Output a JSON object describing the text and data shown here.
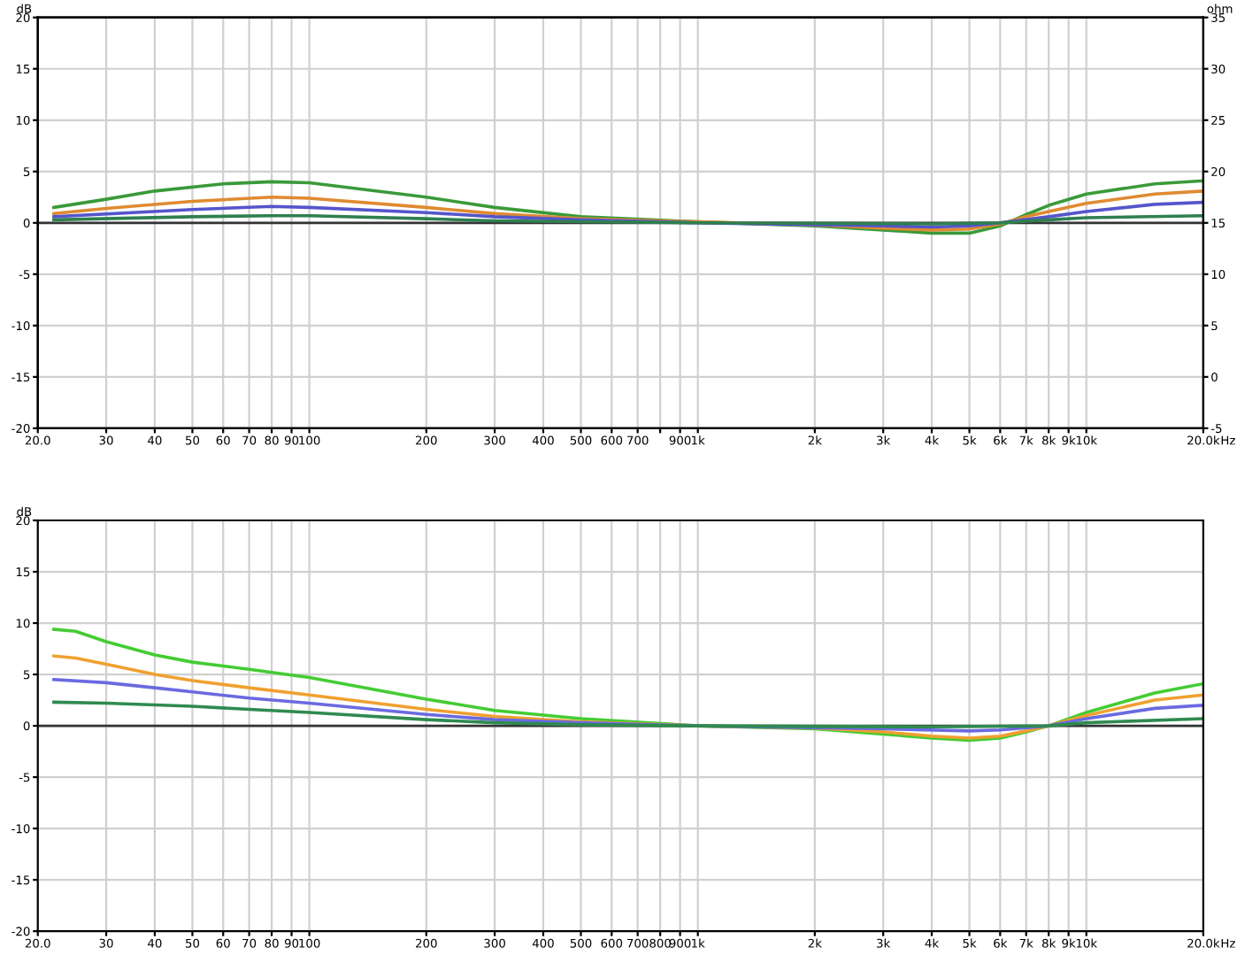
{
  "chart_data": [
    {
      "type": "line",
      "ylabel": "dB",
      "y2label": "ohm",
      "xlabel": "Hz",
      "xlim": [
        20,
        20000
      ],
      "ylim": [
        -20,
        20
      ],
      "y2lim": [
        -5,
        35
      ],
      "log": "x",
      "grid": true,
      "legend": false,
      "marker": "none",
      "line_style": "solid",
      "xticks": [
        {
          "value": 20,
          "label": "20.0"
        },
        30,
        40,
        50,
        60,
        70,
        80,
        90,
        100,
        200,
        300,
        400,
        500,
        600,
        700,
        {
          "value": 800,
          "label": null
        },
        900,
        {
          "value": 1000,
          "label": "1k"
        },
        {
          "value": 2000,
          "label": "2k"
        },
        {
          "value": 3000,
          "label": "3k"
        },
        {
          "value": 4000,
          "label": "4k"
        },
        {
          "value": 5000,
          "label": "5k"
        },
        {
          "value": 6000,
          "label": "6k"
        },
        {
          "value": 7000,
          "label": "7k"
        },
        {
          "value": 8000,
          "label": "8k"
        },
        {
          "value": 9000,
          "label": "9k"
        },
        {
          "value": 10000,
          "label": "10k"
        },
        {
          "value": 20000,
          "label": "20.0k"
        }
      ],
      "yticks": [
        -20,
        -15,
        -10,
        -5,
        0,
        5,
        10,
        15,
        20
      ],
      "y2ticks": [
        -5,
        0,
        5,
        10,
        15,
        20,
        25,
        30,
        35
      ],
      "ref_lines": [
        {
          "axis": "y",
          "value": 0,
          "label": null,
          "color": "#333333"
        }
      ],
      "series": [
        {
          "color": "#3a9a3a",
          "x": [
            22,
            30,
            40,
            60,
            80,
            100,
            200,
            300,
            500,
            1000,
            2000,
            3000,
            4000,
            5000,
            6000,
            7000,
            8000,
            10000,
            15000,
            20000
          ],
          "values": [
            1.5,
            2.3,
            3.1,
            3.8,
            4.0,
            3.9,
            2.5,
            1.5,
            0.6,
            0.1,
            -0.3,
            -0.7,
            -1.0,
            -1.0,
            -0.3,
            0.8,
            1.7,
            2.8,
            3.8,
            4.1
          ]
        },
        {
          "color": "#e08a30",
          "x": [
            22,
            30,
            50,
            80,
            100,
            200,
            300,
            500,
            1000,
            2000,
            3000,
            4000,
            5000,
            6000,
            7000,
            8000,
            10000,
            15000,
            20000
          ],
          "values": [
            0.9,
            1.4,
            2.1,
            2.5,
            2.4,
            1.5,
            0.9,
            0.4,
            0.1,
            -0.2,
            -0.5,
            -0.7,
            -0.6,
            -0.1,
            0.6,
            1.1,
            1.9,
            2.8,
            3.1
          ]
        },
        {
          "color": "#5555cc",
          "x": [
            22,
            50,
            80,
            100,
            200,
            300,
            500,
            1000,
            3000,
            4000,
            5000,
            6000,
            8000,
            10000,
            15000,
            20000
          ],
          "values": [
            0.6,
            1.3,
            1.6,
            1.5,
            1.0,
            0.6,
            0.3,
            0,
            -0.3,
            -0.4,
            -0.3,
            0,
            0.6,
            1.1,
            1.8,
            2.0
          ]
        },
        {
          "color": "#2f7f4f",
          "x": [
            22,
            50,
            80,
            100,
            200,
            300,
            1000,
            4000,
            6000,
            8000,
            10000,
            20000
          ],
          "values": [
            0.3,
            0.6,
            0.7,
            0.7,
            0.4,
            0.2,
            0,
            -0.1,
            0,
            0.3,
            0.5,
            0.7
          ]
        }
      ]
    },
    {
      "type": "line",
      "ylabel": "dB",
      "xlabel": "Hz",
      "xlim": [
        20,
        20000
      ],
      "ylim": [
        -20,
        20
      ],
      "log": "x",
      "grid": true,
      "legend": false,
      "marker": "none",
      "line_style": "solid",
      "xticks": [
        {
          "value": 20,
          "label": "20.0"
        },
        30,
        40,
        50,
        60,
        70,
        80,
        90,
        100,
        200,
        300,
        400,
        500,
        600,
        700,
        800,
        900,
        {
          "value": 1000,
          "label": "1k"
        },
        {
          "value": 2000,
          "label": "2k"
        },
        {
          "value": 3000,
          "label": "3k"
        },
        {
          "value": 4000,
          "label": "4k"
        },
        {
          "value": 5000,
          "label": "5k"
        },
        {
          "value": 6000,
          "label": "6k"
        },
        {
          "value": 7000,
          "label": "7k"
        },
        {
          "value": 8000,
          "label": "8k"
        },
        {
          "value": 9000,
          "label": "9k"
        },
        {
          "value": 10000,
          "label": "10k"
        },
        {
          "value": 20000,
          "label": "20.0k"
        }
      ],
      "yticks": [
        -20,
        -15,
        -10,
        -5,
        0,
        5,
        10,
        15,
        20
      ],
      "ref_lines": [
        {
          "axis": "y",
          "value": 0,
          "label": null,
          "color": "#333333"
        }
      ],
      "series": [
        {
          "color": "#44cc33",
          "x": [
            22,
            25,
            30,
            40,
            50,
            70,
            100,
            200,
            300,
            500,
            1000,
            2000,
            3000,
            4000,
            5000,
            6000,
            7000,
            8000,
            10000,
            15000,
            20000
          ],
          "values": [
            9.4,
            9.2,
            8.2,
            6.9,
            6.2,
            5.5,
            4.7,
            2.6,
            1.5,
            0.7,
            0,
            -0.3,
            -0.8,
            -1.2,
            -1.4,
            -1.2,
            -0.6,
            0,
            1.3,
            3.2,
            4.1
          ]
        },
        {
          "color": "#f0a030",
          "x": [
            22,
            25,
            30,
            40,
            50,
            70,
            100,
            200,
            300,
            500,
            1000,
            2000,
            3000,
            4000,
            5000,
            6000,
            7000,
            8000,
            10000,
            15000,
            20000
          ],
          "values": [
            6.8,
            6.6,
            6.0,
            5.0,
            4.4,
            3.7,
            3.0,
            1.6,
            0.9,
            0.4,
            0,
            -0.2,
            -0.6,
            -1.0,
            -1.2,
            -1.0,
            -0.5,
            0,
            1.0,
            2.5,
            3.0
          ]
        },
        {
          "color": "#6a6ae0",
          "x": [
            22,
            30,
            40,
            50,
            70,
            100,
            200,
            300,
            500,
            1000,
            3000,
            5000,
            6000,
            8000,
            10000,
            15000,
            20000
          ],
          "values": [
            4.5,
            4.2,
            3.7,
            3.3,
            2.7,
            2.2,
            1.1,
            0.6,
            0.3,
            0,
            -0.3,
            -0.5,
            -0.4,
            0,
            0.7,
            1.7,
            2.0
          ]
        },
        {
          "color": "#2f8a4f",
          "x": [
            22,
            30,
            50,
            70,
            100,
            200,
            300,
            500,
            1000,
            4000,
            8000,
            10000,
            20000
          ],
          "values": [
            2.3,
            2.2,
            1.9,
            1.6,
            1.3,
            0.6,
            0.3,
            0.1,
            0,
            -0.1,
            0,
            0.3,
            0.7
          ]
        }
      ]
    }
  ]
}
